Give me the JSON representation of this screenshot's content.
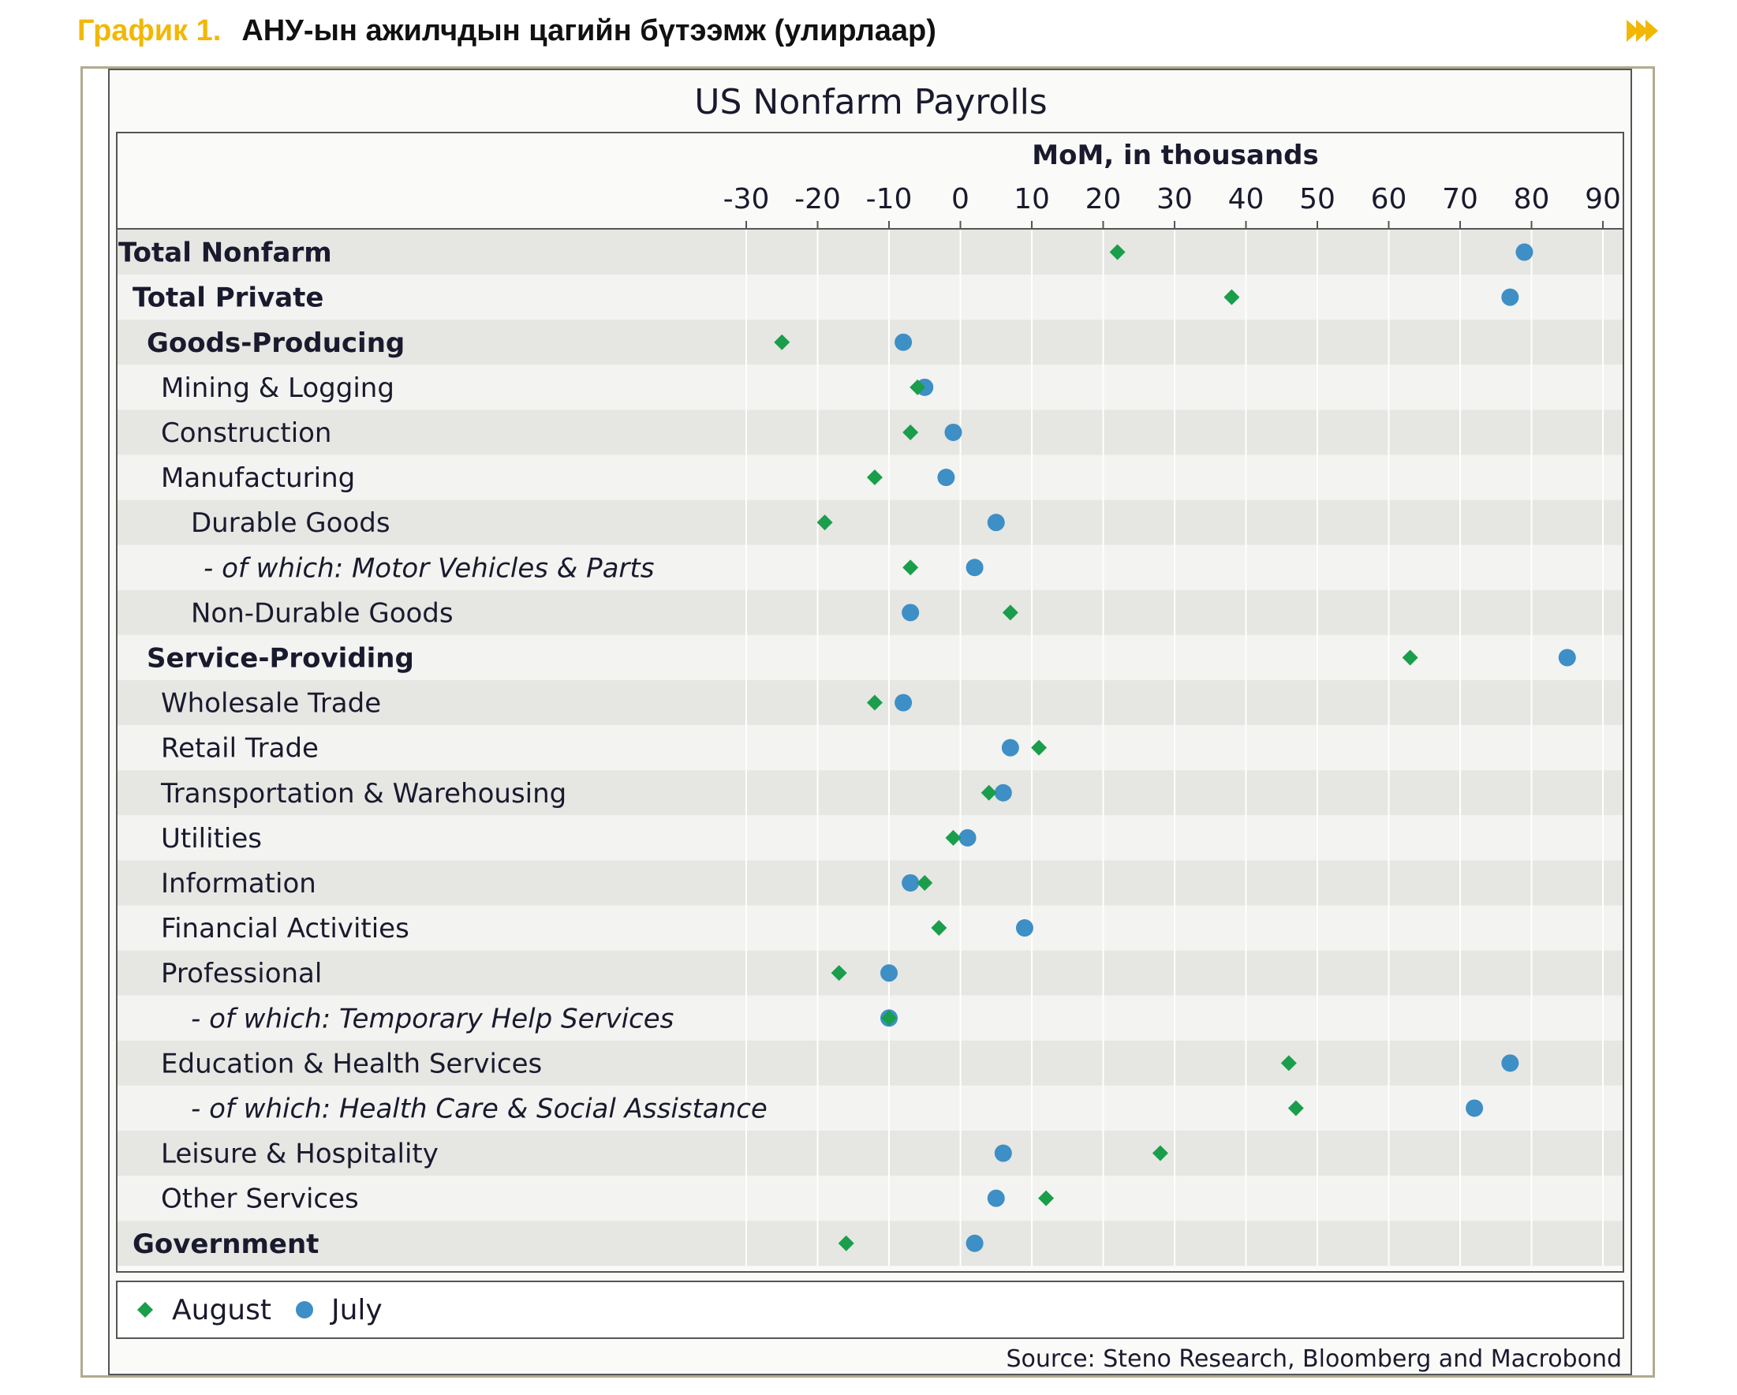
{
  "header": {
    "figure_label": "График 1.",
    "figure_title": "АНУ-ын ажилчдын цагийн бүтээмж (улирлаар)"
  },
  "colors": {
    "august": "#1a9e4b",
    "july": "#3d8fc6",
    "frame": "#b2aa8e",
    "band": "#e6e6e3",
    "accent": "#f2b705"
  },
  "icons": {
    "nav": "double-chevron-right-icon"
  },
  "chart_data": {
    "type": "scatter",
    "title": "US Nonfarm Payrolls",
    "xlabel": "MoM, in thousands",
    "ylabel": "",
    "xlim": [
      -30,
      90
    ],
    "xticks": [
      -30,
      -20,
      -10,
      0,
      10,
      20,
      30,
      40,
      50,
      60,
      70,
      80,
      90
    ],
    "grid": true,
    "legend_position": "bottom-left",
    "source": "Source: Steno Research, Bloomberg and Macrobond",
    "series": [
      {
        "name": "August",
        "marker": "diamond"
      },
      {
        "name": "July",
        "marker": "circle"
      }
    ],
    "categories": [
      {
        "label": "Total Nonfarm",
        "level": 0,
        "style": "bold",
        "august": 22,
        "july": 79
      },
      {
        "label": "Total Private",
        "level": 1,
        "style": "bold",
        "august": 38,
        "july": 77
      },
      {
        "label": "Goods-Producing",
        "level": 2,
        "style": "bold",
        "august": -25,
        "july": -8
      },
      {
        "label": "Mining & Logging",
        "level": 3,
        "style": "normal",
        "august": -6,
        "july": -5
      },
      {
        "label": "Construction",
        "level": 3,
        "style": "normal",
        "august": -7,
        "july": -1
      },
      {
        "label": "Manufacturing",
        "level": 3,
        "style": "normal",
        "august": -12,
        "july": -2
      },
      {
        "label": "Durable Goods",
        "level": 4,
        "style": "normal",
        "august": -19,
        "july": 5
      },
      {
        "label": "- of which: Motor Vehicles & Parts",
        "level": 5,
        "style": "italic",
        "august": -7,
        "july": 2
      },
      {
        "label": "Non-Durable Goods",
        "level": 4,
        "style": "normal",
        "august": 7,
        "july": -7
      },
      {
        "label": "Service-Providing",
        "level": 2,
        "style": "bold",
        "august": 63,
        "july": 85
      },
      {
        "label": "Wholesale Trade",
        "level": 3,
        "style": "normal",
        "august": -12,
        "july": -8
      },
      {
        "label": "Retail Trade",
        "level": 3,
        "style": "normal",
        "august": 11,
        "july": 7
      },
      {
        "label": "Transportation & Warehousing",
        "level": 3,
        "style": "normal",
        "august": 4,
        "july": 6
      },
      {
        "label": "Utilities",
        "level": 3,
        "style": "normal",
        "august": -1,
        "july": 1
      },
      {
        "label": "Information",
        "level": 3,
        "style": "normal",
        "august": -5,
        "july": -7
      },
      {
        "label": "Financial Activities",
        "level": 3,
        "style": "normal",
        "august": -3,
        "july": 9
      },
      {
        "label": "Professional",
        "level": 3,
        "style": "normal",
        "august": -17,
        "july": -10
      },
      {
        "label": "- of which: Temporary Help Services",
        "level": 4,
        "style": "italic",
        "august": -10,
        "july": -10
      },
      {
        "label": "Education & Health Services",
        "level": 3,
        "style": "normal",
        "august": 46,
        "july": 77
      },
      {
        "label": "- of which: Health Care & Social Assistance",
        "level": 4,
        "style": "italic",
        "august": 47,
        "july": 72
      },
      {
        "label": "Leisure & Hospitality",
        "level": 3,
        "style": "normal",
        "august": 28,
        "july": 6
      },
      {
        "label": "Other Services",
        "level": 3,
        "style": "normal",
        "august": 12,
        "july": 5
      },
      {
        "label": "Government",
        "level": 1,
        "style": "bold",
        "august": -16,
        "july": 2
      }
    ]
  }
}
